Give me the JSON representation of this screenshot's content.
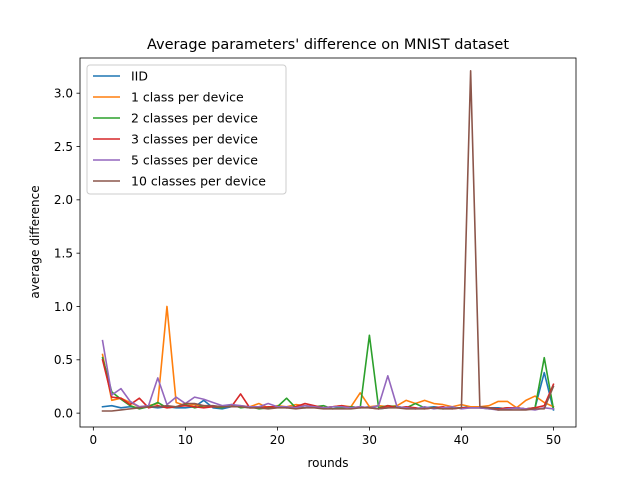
{
  "chart_data": {
    "type": "line",
    "title": "Average parameters' difference on MNIST dataset",
    "xlabel": "rounds",
    "ylabel": "average difference",
    "xlim": [
      -1.45,
      52.45
    ],
    "ylim": [
      -0.13,
      3.33
    ],
    "xticks": [
      0,
      10,
      20,
      30,
      40,
      50
    ],
    "yticks": [
      0.0,
      0.5,
      1.0,
      1.5,
      2.0,
      2.5,
      3.0
    ],
    "xtick_labels": [
      "0",
      "10",
      "20",
      "30",
      "40",
      "50"
    ],
    "ytick_labels": [
      "0.0",
      "0.5",
      "1.0",
      "1.5",
      "2.0",
      "2.5",
      "3.0"
    ],
    "grid": false,
    "legend_position": "top-left",
    "x": [
      1,
      2,
      3,
      4,
      5,
      6,
      7,
      8,
      9,
      10,
      11,
      12,
      13,
      14,
      15,
      16,
      17,
      18,
      19,
      20,
      21,
      22,
      23,
      24,
      25,
      26,
      27,
      28,
      29,
      30,
      31,
      32,
      33,
      34,
      35,
      36,
      37,
      38,
      39,
      40,
      41,
      42,
      43,
      44,
      45,
      46,
      47,
      48,
      49,
      50
    ],
    "series": [
      {
        "name": "IID",
        "color": "#1f77b4",
        "values": [
          0.06,
          0.07,
          0.05,
          0.06,
          0.05,
          0.06,
          0.05,
          0.06,
          0.05,
          0.05,
          0.06,
          0.12,
          0.05,
          0.04,
          0.06,
          0.06,
          0.05,
          0.06,
          0.05,
          0.06,
          0.05,
          0.06,
          0.05,
          0.06,
          0.05,
          0.06,
          0.05,
          0.06,
          0.05,
          0.06,
          0.04,
          0.05,
          0.06,
          0.05,
          0.04,
          0.05,
          0.06,
          0.05,
          0.05,
          0.05,
          0.06,
          0.05,
          0.05,
          0.05,
          0.04,
          0.05,
          0.04,
          0.05,
          0.38,
          0.03
        ]
      },
      {
        "name": "1 class per device",
        "color": "#ff7f0e",
        "values": [
          0.55,
          0.12,
          0.14,
          0.1,
          0.06,
          0.07,
          0.09,
          1.0,
          0.1,
          0.07,
          0.08,
          0.06,
          0.06,
          0.06,
          0.07,
          0.07,
          0.06,
          0.09,
          0.05,
          0.07,
          0.06,
          0.08,
          0.07,
          0.06,
          0.05,
          0.06,
          0.07,
          0.06,
          0.19,
          0.06,
          0.07,
          0.06,
          0.07,
          0.12,
          0.09,
          0.12,
          0.09,
          0.08,
          0.06,
          0.08,
          0.06,
          0.06,
          0.07,
          0.11,
          0.11,
          0.05,
          0.12,
          0.16,
          0.1,
          0.06
        ]
      },
      {
        "name": "2 classes per device",
        "color": "#2ca02c",
        "values": [
          0.52,
          0.2,
          0.13,
          0.07,
          0.04,
          0.06,
          0.1,
          0.05,
          0.06,
          0.08,
          0.05,
          0.07,
          0.06,
          0.05,
          0.08,
          0.05,
          0.06,
          0.04,
          0.05,
          0.06,
          0.14,
          0.05,
          0.05,
          0.06,
          0.07,
          0.04,
          0.05,
          0.06,
          0.05,
          0.73,
          0.05,
          0.07,
          0.06,
          0.05,
          0.09,
          0.05,
          0.05,
          0.04,
          0.05,
          0.05,
          0.05,
          0.05,
          0.04,
          0.04,
          0.05,
          0.05,
          0.04,
          0.05,
          0.52,
          0.04
        ]
      },
      {
        "name": "3 classes per device",
        "color": "#d62728",
        "values": [
          0.5,
          0.15,
          0.14,
          0.08,
          0.14,
          0.05,
          0.07,
          0.05,
          0.06,
          0.07,
          0.06,
          0.05,
          0.06,
          0.06,
          0.06,
          0.18,
          0.05,
          0.05,
          0.06,
          0.06,
          0.05,
          0.06,
          0.09,
          0.07,
          0.05,
          0.06,
          0.07,
          0.05,
          0.06,
          0.05,
          0.04,
          0.07,
          0.05,
          0.06,
          0.05,
          0.04,
          0.05,
          0.06,
          0.04,
          0.05,
          0.05,
          0.05,
          0.05,
          0.04,
          0.05,
          0.05,
          0.04,
          0.05,
          0.07,
          0.27
        ]
      },
      {
        "name": "5 classes per device",
        "color": "#9467bd",
        "values": [
          0.68,
          0.17,
          0.23,
          0.11,
          0.06,
          0.07,
          0.33,
          0.08,
          0.15,
          0.09,
          0.15,
          0.13,
          0.1,
          0.07,
          0.08,
          0.07,
          0.06,
          0.06,
          0.09,
          0.06,
          0.06,
          0.05,
          0.07,
          0.06,
          0.05,
          0.06,
          0.06,
          0.05,
          0.06,
          0.05,
          0.07,
          0.35,
          0.06,
          0.05,
          0.04,
          0.06,
          0.04,
          0.05,
          0.06,
          0.04,
          0.05,
          0.05,
          0.04,
          0.03,
          0.04,
          0.05,
          0.04,
          0.03,
          0.05,
          0.04
        ]
      },
      {
        "name": "10 classes per device",
        "color": "#8c564b",
        "values": [
          0.02,
          0.02,
          0.03,
          0.04,
          0.05,
          0.06,
          0.06,
          0.07,
          0.06,
          0.09,
          0.09,
          0.07,
          0.07,
          0.06,
          0.06,
          0.06,
          0.05,
          0.05,
          0.04,
          0.05,
          0.05,
          0.04,
          0.05,
          0.05,
          0.04,
          0.04,
          0.04,
          0.04,
          0.05,
          0.05,
          0.04,
          0.05,
          0.05,
          0.04,
          0.04,
          0.04,
          0.05,
          0.04,
          0.04,
          0.05,
          3.21,
          0.06,
          0.05,
          0.03,
          0.03,
          0.03,
          0.03,
          0.04,
          0.04,
          0.25
        ]
      }
    ]
  }
}
